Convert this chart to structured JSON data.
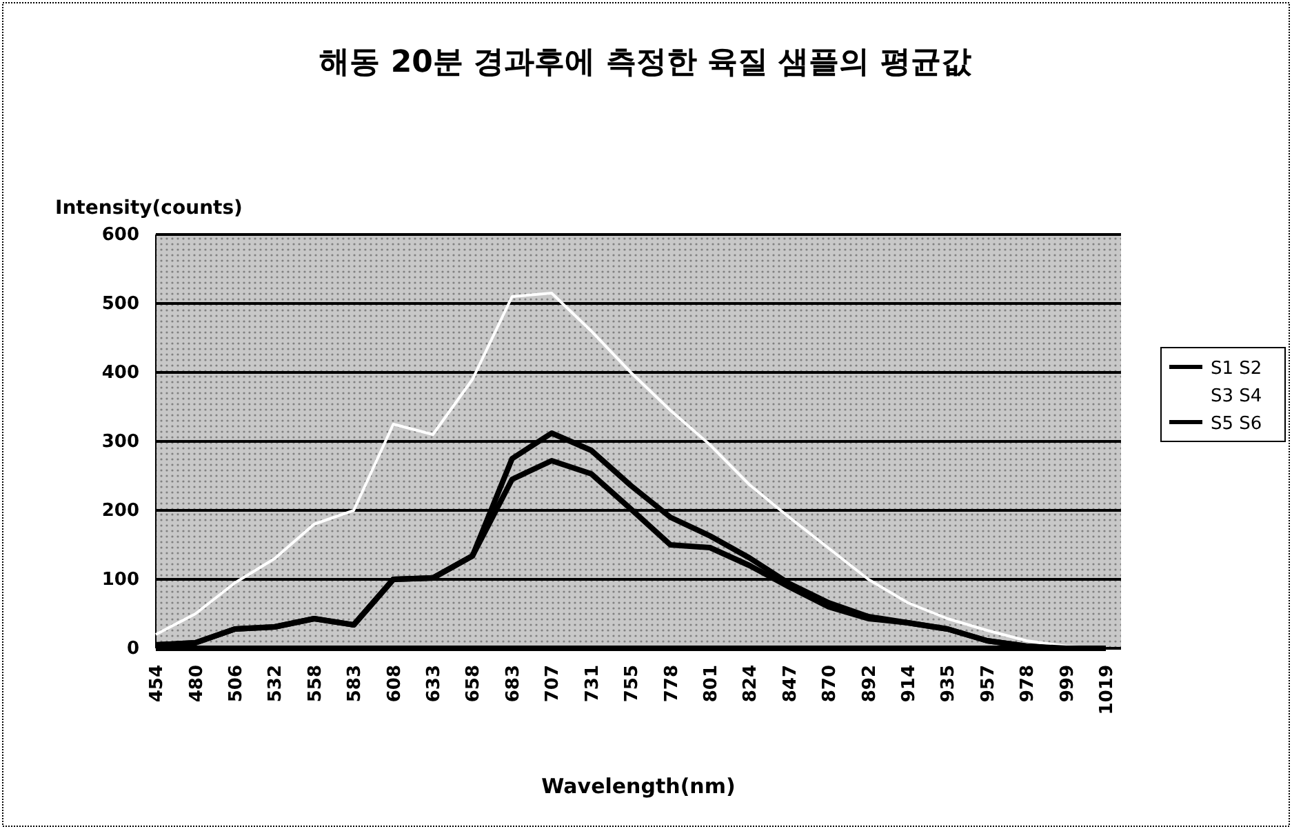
{
  "chart_data": {
    "type": "line",
    "title": "해동 20분 경과후에 측정한 육질 샘플의 평균값",
    "xlabel": "Wavelength(nm)",
    "ylabel": "Intensity(counts)",
    "categories": [
      "454",
      "480",
      "506",
      "532",
      "558",
      "583",
      "608",
      "633",
      "658",
      "683",
      "707",
      "731",
      "755",
      "778",
      "801",
      "824",
      "847",
      "870",
      "892",
      "914",
      "935",
      "957",
      "978",
      "999",
      "1019"
    ],
    "series": [
      {
        "name": "S1 S2",
        "color": "#000000",
        "values": [
          5,
          8,
          28,
          31,
          43,
          34,
          100,
          102,
          134,
          275,
          312,
          287,
          236,
          190,
          163,
          131,
          94,
          66,
          46,
          37,
          28,
          11,
          3,
          0,
          0
        ]
      },
      {
        "name": "S3 S4",
        "color": "#ffffff",
        "values": [
          20,
          50,
          95,
          130,
          180,
          200,
          325,
          310,
          390,
          510,
          515,
          460,
          400,
          345,
          295,
          237,
          190,
          145,
          100,
          66,
          43,
          26,
          11,
          3,
          0
        ]
      },
      {
        "name": "S5 S6",
        "color": "#000000",
        "values": [
          5,
          8,
          28,
          31,
          43,
          34,
          100,
          102,
          134,
          245,
          272,
          253,
          202,
          150,
          146,
          120,
          89,
          60,
          43,
          37,
          28,
          11,
          3,
          0,
          0
        ]
      }
    ],
    "ylim": [
      0,
      600
    ],
    "yticks": [
      0,
      100,
      200,
      300,
      400,
      500,
      600
    ],
    "grid": "y",
    "legend": "right",
    "marker": "none",
    "line_style": "solid"
  }
}
